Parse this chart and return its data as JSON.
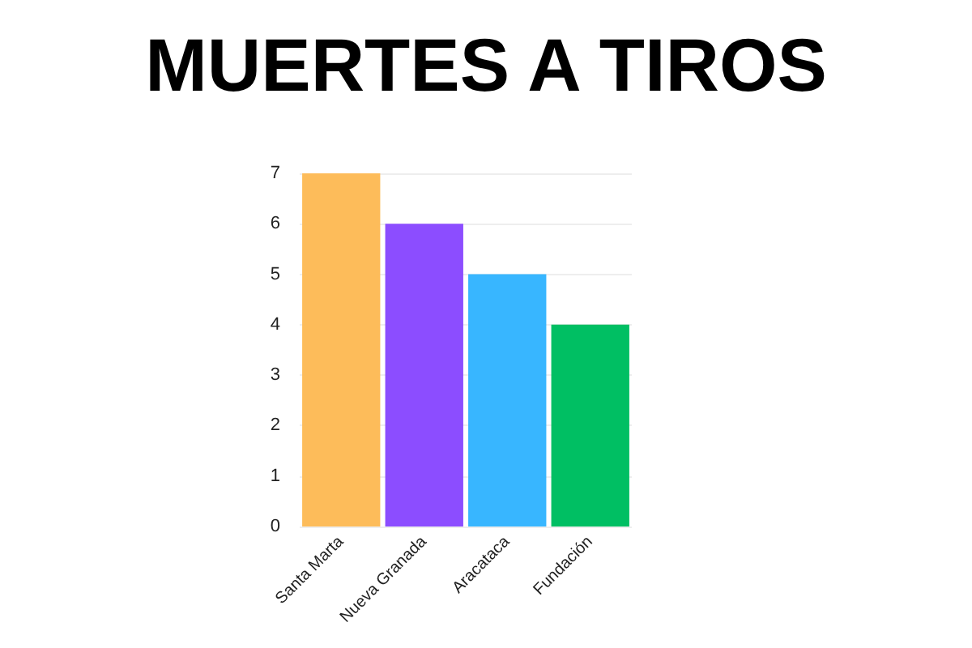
{
  "chart_data": {
    "type": "bar",
    "title": "MUERTES A TIROS",
    "categories": [
      "Santa Marta",
      "Nueva Granada",
      "Aracataca",
      "Fundación"
    ],
    "values": [
      7,
      6,
      5,
      4
    ],
    "colors": [
      "#fdbc5a",
      "#8c4dff",
      "#38b6ff",
      "#00bf63"
    ],
    "ylim": [
      0,
      7
    ],
    "yticks": [
      0,
      1,
      2,
      3,
      4,
      5,
      6,
      7
    ],
    "grid": true
  }
}
